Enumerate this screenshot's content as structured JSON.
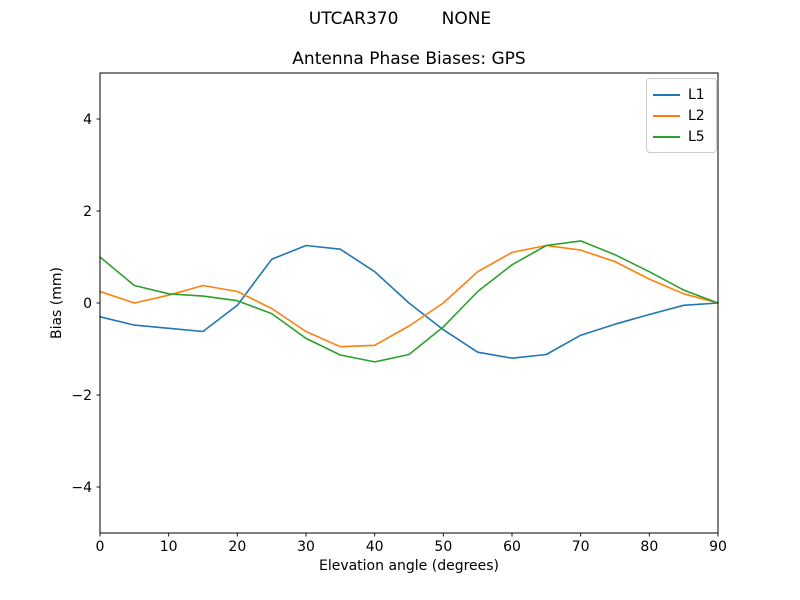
{
  "chart_data": {
    "type": "line",
    "suptitle": "UTCAR370        NONE",
    "title": "Antenna Phase Biases: GPS",
    "xlabel": "Elevation angle (degrees)",
    "ylabel": "Bias (mm)",
    "xlim": [
      0,
      90
    ],
    "ylim": [
      -5,
      5
    ],
    "xticks": [
      0,
      10,
      20,
      30,
      40,
      50,
      60,
      70,
      80,
      90
    ],
    "yticks": [
      -4,
      -2,
      0,
      2,
      4
    ],
    "grid": false,
    "legend_position": "upper right",
    "background": "#ffffff",
    "axis_color": "#000000",
    "x": [
      0,
      5,
      10,
      15,
      20,
      25,
      30,
      35,
      40,
      45,
      50,
      55,
      60,
      65,
      70,
      75,
      80,
      85,
      90
    ],
    "series": [
      {
        "name": "L1",
        "color": "#1f77b4",
        "values": [
          -0.3,
          -0.48,
          -0.55,
          -0.62,
          -0.05,
          0.95,
          1.25,
          1.17,
          0.68,
          0.0,
          -0.58,
          -1.07,
          -1.2,
          -1.12,
          -0.7,
          -0.46,
          -0.25,
          -0.05,
          0.0
        ]
      },
      {
        "name": "L2",
        "color": "#ff7f0e",
        "values": [
          0.25,
          0.0,
          0.17,
          0.38,
          0.25,
          -0.12,
          -0.62,
          -0.95,
          -0.92,
          -0.5,
          0.0,
          0.68,
          1.1,
          1.25,
          1.15,
          0.9,
          0.52,
          0.2,
          0.0
        ]
      },
      {
        "name": "L5",
        "color": "#2ca02c",
        "values": [
          1.0,
          0.38,
          0.2,
          0.15,
          0.05,
          -0.23,
          -0.77,
          -1.13,
          -1.28,
          -1.12,
          -0.52,
          0.25,
          0.83,
          1.25,
          1.35,
          1.05,
          0.68,
          0.28,
          0.0
        ]
      }
    ]
  }
}
